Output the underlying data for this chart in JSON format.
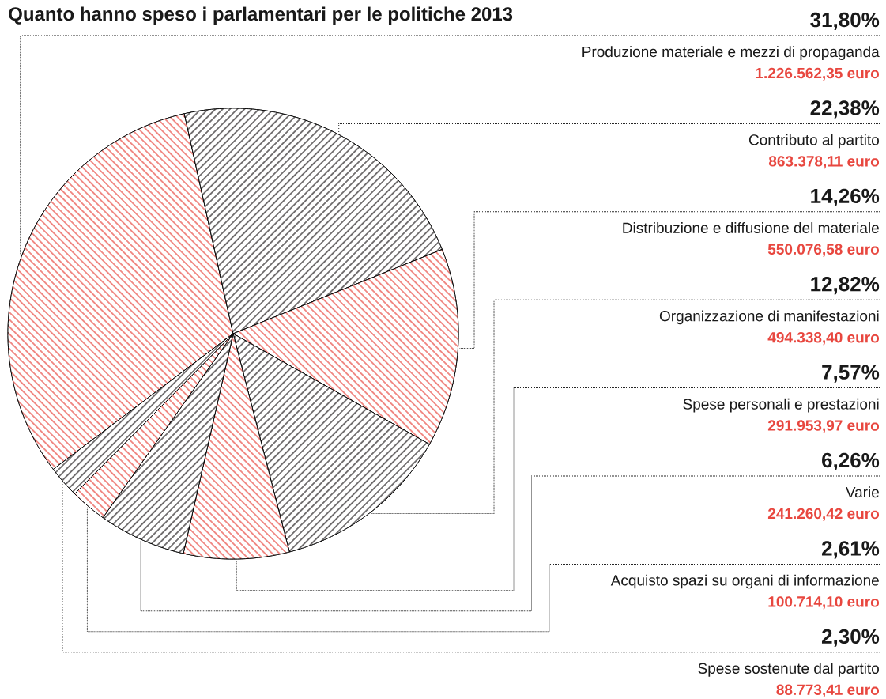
{
  "chart_data": {
    "type": "pie",
    "title": "Quanto hanno speso i parlamentari per le politiche 2013",
    "categories": [
      "Produzione materiale e mezzi di propaganda",
      "Contributo al partito",
      "Distribuzione e diffusione del materiale",
      "Organizzazione di manifestazioni",
      "Spese personali e prestazioni",
      "Varie",
      "Acquisto spazi su organi di informazione",
      "Spese sostenute dal partito"
    ],
    "values": [
      31.8,
      22.38,
      14.26,
      12.82,
      7.57,
      6.26,
      2.61,
      2.3
    ],
    "value_labels": [
      "31,80%",
      "22,38%",
      "14,26%",
      "12,82%",
      "7,57%",
      "6,26%",
      "2,61%",
      "2,30%"
    ],
    "colors": [
      "#e8473f",
      "#231f20",
      "#e8473f",
      "#231f20",
      "#e8473f",
      "#231f20",
      "#e8473f",
      "#231f20"
    ],
    "annotations": [
      "1.226.562,35 euro",
      "863.378,11 euro",
      "550.076,58 euro",
      "494.338,40 euro",
      "291.953,97 euro",
      "241.260,42 euro",
      "100.714,10 euro",
      "88.773,41 euro"
    ]
  }
}
